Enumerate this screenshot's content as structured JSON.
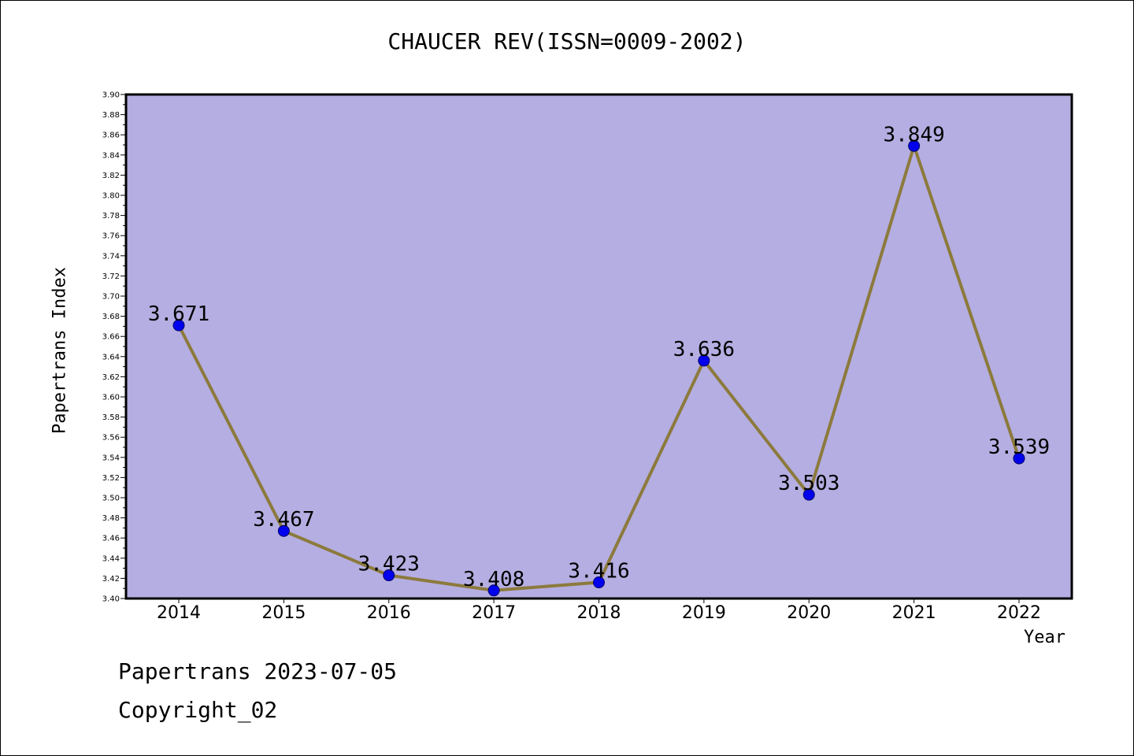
{
  "chart_data": {
    "type": "line",
    "title": "CHAUCER REV(ISSN=0009-2002)",
    "xlabel": "Year",
    "ylabel": "Papertrans Index",
    "categories": [
      "2014",
      "2015",
      "2016",
      "2017",
      "2018",
      "2019",
      "2020",
      "2021",
      "2022"
    ],
    "values": [
      3.671,
      3.467,
      3.423,
      3.408,
      3.416,
      3.636,
      3.503,
      3.849,
      3.539
    ],
    "data_labels": [
      "3.671",
      "3.467",
      "3.423",
      "3.408",
      "3.416",
      "3.636",
      "3.503",
      "3.849",
      "3.539"
    ],
    "ylim": [
      3.4,
      3.9
    ],
    "yticks": [
      "3.40",
      "3.42",
      "3.44",
      "3.46",
      "3.48",
      "3.50",
      "3.52",
      "3.54",
      "3.56",
      "3.58",
      "3.60",
      "3.62",
      "3.64",
      "3.66",
      "3.68",
      "3.70",
      "3.72",
      "3.74",
      "3.76",
      "3.78",
      "3.80",
      "3.82",
      "3.84",
      "3.86",
      "3.88",
      "3.90"
    ],
    "grid": false,
    "colors": {
      "plot_background": "#b5aee2",
      "line": "#8c7a3c",
      "marker": "#0000ee",
      "marker_edge": "#000066"
    }
  },
  "footer": {
    "line1": "Papertrans 2023-07-05",
    "line2": "Copyright_02"
  }
}
